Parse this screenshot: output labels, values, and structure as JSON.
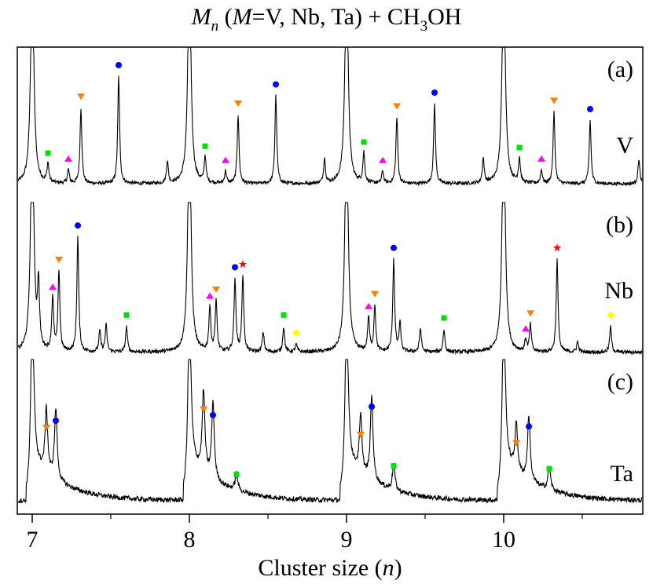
{
  "chart_data": {
    "type": "line",
    "title": {
      "prefix": "M",
      "subscript": "n",
      "middle": " (",
      "italic_m": "M",
      "rest": "=V, Nb, Ta) + CH",
      "sub3": "3",
      "tail": "OH",
      "full": "Mn (M=V, Nb, Ta) + CH3OH"
    },
    "xlabel": {
      "text": "Cluster size (",
      "italic": "n",
      "close": ")"
    },
    "ylabel": "",
    "xlim": [
      6.9,
      10.9
    ],
    "xticks": [
      7,
      8,
      9,
      10
    ],
    "xtick_labels": [
      "7",
      "8",
      "9",
      "10"
    ],
    "minor_xticks": [
      7.5,
      8.5,
      9.5,
      10.5
    ],
    "grid": false,
    "legend": "none",
    "marker_legend": {
      "circle": {
        "color": "#0000ff",
        "shape": "circle"
      },
      "down_triangle": {
        "color": "#ff7f00",
        "shape": "down-triangle"
      },
      "up_triangle": {
        "color": "#ff00ff",
        "shape": "up-triangle"
      },
      "square": {
        "color": "#00e000",
        "shape": "square"
      },
      "star": {
        "color": "#ff0000",
        "shape": "star"
      },
      "diamond": {
        "color": "#ffff00",
        "shape": "diamond"
      }
    },
    "panels": [
      {
        "id": "a",
        "label": "(a)",
        "metal": "V",
        "bare_cluster_peaks": [
          7.0,
          8.0,
          9.0,
          10.0
        ],
        "peaks": [
          {
            "x": 7.1,
            "h": 0.14,
            "marker": "square"
          },
          {
            "x": 7.23,
            "h": 0.1,
            "marker": "up_triangle"
          },
          {
            "x": 7.31,
            "h": 0.55,
            "marker": "down_triangle"
          },
          {
            "x": 7.55,
            "h": 0.78,
            "marker": "circle"
          },
          {
            "x": 7.86,
            "h": 0.16,
            "marker": null
          },
          {
            "x": 8.1,
            "h": 0.19,
            "marker": "square"
          },
          {
            "x": 8.23,
            "h": 0.09,
            "marker": "up_triangle"
          },
          {
            "x": 8.31,
            "h": 0.5,
            "marker": "down_triangle"
          },
          {
            "x": 8.55,
            "h": 0.64,
            "marker": "circle"
          },
          {
            "x": 8.86,
            "h": 0.18,
            "marker": null
          },
          {
            "x": 9.11,
            "h": 0.22,
            "marker": "square"
          },
          {
            "x": 9.23,
            "h": 0.09,
            "marker": "up_triangle"
          },
          {
            "x": 9.32,
            "h": 0.48,
            "marker": "down_triangle"
          },
          {
            "x": 9.56,
            "h": 0.58,
            "marker": "circle"
          },
          {
            "x": 9.87,
            "h": 0.18,
            "marker": null
          },
          {
            "x": 10.1,
            "h": 0.18,
            "marker": "square"
          },
          {
            "x": 10.24,
            "h": 0.1,
            "marker": "up_triangle"
          },
          {
            "x": 10.32,
            "h": 0.52,
            "marker": "down_triangle"
          },
          {
            "x": 10.55,
            "h": 0.46,
            "marker": "circle"
          },
          {
            "x": 10.86,
            "h": 0.18,
            "marker": null
          }
        ]
      },
      {
        "id": "b",
        "label": "(b)",
        "metal": "Nb",
        "bare_cluster_peaks": [
          7.0,
          8.0,
          9.0,
          10.0
        ],
        "peaks": [
          {
            "x": 7.04,
            "h": 0.42,
            "marker": null
          },
          {
            "x": 7.13,
            "h": 0.36,
            "marker": "up_triangle"
          },
          {
            "x": 7.17,
            "h": 0.54,
            "marker": "down_triangle"
          },
          {
            "x": 7.29,
            "h": 0.77,
            "marker": "circle"
          },
          {
            "x": 7.43,
            "h": 0.14,
            "marker": null
          },
          {
            "x": 7.47,
            "h": 0.18,
            "marker": null
          },
          {
            "x": 7.6,
            "h": 0.17,
            "marker": "square"
          },
          {
            "x": 8.13,
            "h": 0.3,
            "marker": "up_triangle"
          },
          {
            "x": 8.17,
            "h": 0.34,
            "marker": "down_triangle"
          },
          {
            "x": 8.29,
            "h": 0.49,
            "marker": "circle"
          },
          {
            "x": 8.34,
            "h": 0.51,
            "marker": "star"
          },
          {
            "x": 8.47,
            "h": 0.13,
            "marker": null
          },
          {
            "x": 8.6,
            "h": 0.17,
            "marker": "square"
          },
          {
            "x": 8.68,
            "h": 0.05,
            "marker": "diamond"
          },
          {
            "x": 9.14,
            "h": 0.23,
            "marker": "up_triangle"
          },
          {
            "x": 9.18,
            "h": 0.31,
            "marker": "down_triangle"
          },
          {
            "x": 9.3,
            "h": 0.62,
            "marker": "circle"
          },
          {
            "x": 9.34,
            "h": 0.19,
            "marker": null
          },
          {
            "x": 9.47,
            "h": 0.16,
            "marker": null
          },
          {
            "x": 9.62,
            "h": 0.15,
            "marker": "square"
          },
          {
            "x": 10.14,
            "h": 0.08,
            "marker": "up_triangle"
          },
          {
            "x": 10.17,
            "h": 0.18,
            "marker": "down_triangle"
          },
          {
            "x": 10.34,
            "h": 0.62,
            "marker": "star"
          },
          {
            "x": 10.47,
            "h": 0.07,
            "marker": null
          },
          {
            "x": 10.68,
            "h": 0.17,
            "marker": "diamond"
          }
        ]
      },
      {
        "id": "c",
        "label": "(c)",
        "metal": "Ta",
        "bare_cluster_peaks": [
          7.0,
          8.0,
          9.0,
          10.0
        ],
        "peaks": [
          {
            "x": 7.09,
            "h": 0.45,
            "marker": "down_triangle"
          },
          {
            "x": 7.15,
            "h": 0.5,
            "marker": "circle"
          },
          {
            "x": 8.09,
            "h": 0.58,
            "marker": "down_triangle"
          },
          {
            "x": 8.15,
            "h": 0.54,
            "marker": "circle"
          },
          {
            "x": 8.3,
            "h": 0.12,
            "marker": "square"
          },
          {
            "x": 9.09,
            "h": 0.4,
            "marker": "down_triangle"
          },
          {
            "x": 9.16,
            "h": 0.6,
            "marker": "circle"
          },
          {
            "x": 9.3,
            "h": 0.18,
            "marker": "square"
          },
          {
            "x": 10.08,
            "h": 0.34,
            "marker": "down_triangle"
          },
          {
            "x": 10.16,
            "h": 0.46,
            "marker": "circle"
          },
          {
            "x": 10.29,
            "h": 0.16,
            "marker": "square"
          }
        ]
      }
    ]
  }
}
